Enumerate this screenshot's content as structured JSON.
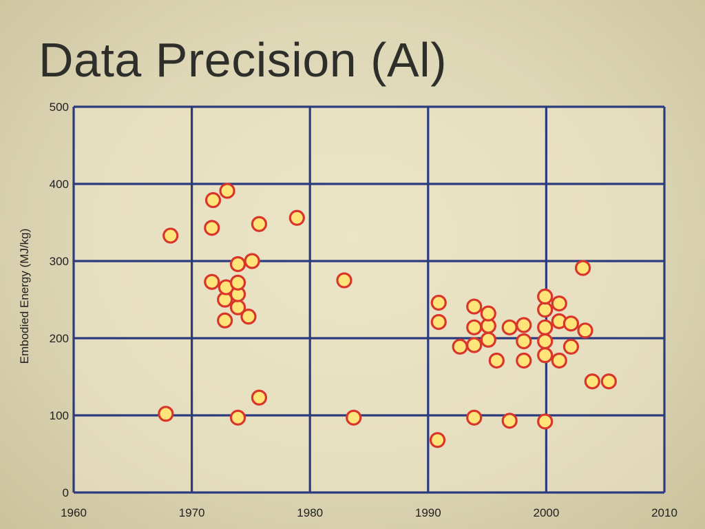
{
  "slide": {
    "title": "Data Precision (Al)"
  },
  "chart_data": {
    "type": "scatter",
    "title": "",
    "xlabel": "",
    "ylabel": "Embodied Energy (MJ/kg)",
    "xlim": [
      1960,
      2010
    ],
    "ylim": [
      0,
      500
    ],
    "x_ticks": [
      1960,
      1970,
      1980,
      1990,
      2000,
      2010
    ],
    "y_ticks": [
      0,
      100,
      200,
      300,
      400,
      500
    ],
    "grid": true,
    "colors": {
      "grid": "#2c3a7e",
      "marker_fill": "#ffe47a",
      "marker_edge": "#d9362b"
    },
    "series": [
      {
        "points": [
          [
            1967.8,
            102
          ],
          [
            1968.2,
            333
          ],
          [
            1971.7,
            273
          ],
          [
            1971.7,
            343
          ],
          [
            1971.8,
            379
          ],
          [
            1972.8,
            250
          ],
          [
            1972.8,
            223
          ],
          [
            1972.9,
            266
          ],
          [
            1973.0,
            391
          ],
          [
            1973.9,
            240
          ],
          [
            1973.9,
            257
          ],
          [
            1973.9,
            272
          ],
          [
            1973.9,
            296
          ],
          [
            1973.9,
            97
          ],
          [
            1974.8,
            228
          ],
          [
            1975.1,
            300
          ],
          [
            1975.7,
            123
          ],
          [
            1975.7,
            348
          ],
          [
            1978.9,
            356
          ],
          [
            1982.9,
            275
          ],
          [
            1983.7,
            97
          ],
          [
            1990.8,
            68
          ],
          [
            1990.9,
            221
          ],
          [
            1990.9,
            246
          ],
          [
            1992.7,
            189
          ],
          [
            1993.9,
            97
          ],
          [
            1993.9,
            191
          ],
          [
            1993.9,
            214
          ],
          [
            1993.9,
            241
          ],
          [
            1995.1,
            198
          ],
          [
            1995.1,
            216
          ],
          [
            1995.1,
            232
          ],
          [
            1995.8,
            171
          ],
          [
            1996.9,
            93
          ],
          [
            1996.9,
            214
          ],
          [
            1998.1,
            171
          ],
          [
            1998.1,
            196
          ],
          [
            1998.1,
            217
          ],
          [
            1999.9,
            92
          ],
          [
            1999.9,
            178
          ],
          [
            1999.9,
            196
          ],
          [
            1999.9,
            214
          ],
          [
            1999.9,
            237
          ],
          [
            1999.9,
            254
          ],
          [
            2001.1,
            171
          ],
          [
            2001.1,
            222
          ],
          [
            2001.1,
            245
          ],
          [
            2002.1,
            189
          ],
          [
            2002.1,
            219
          ],
          [
            2003.1,
            291
          ],
          [
            2003.3,
            210
          ],
          [
            2003.9,
            144
          ],
          [
            2005.3,
            144
          ]
        ]
      }
    ]
  }
}
